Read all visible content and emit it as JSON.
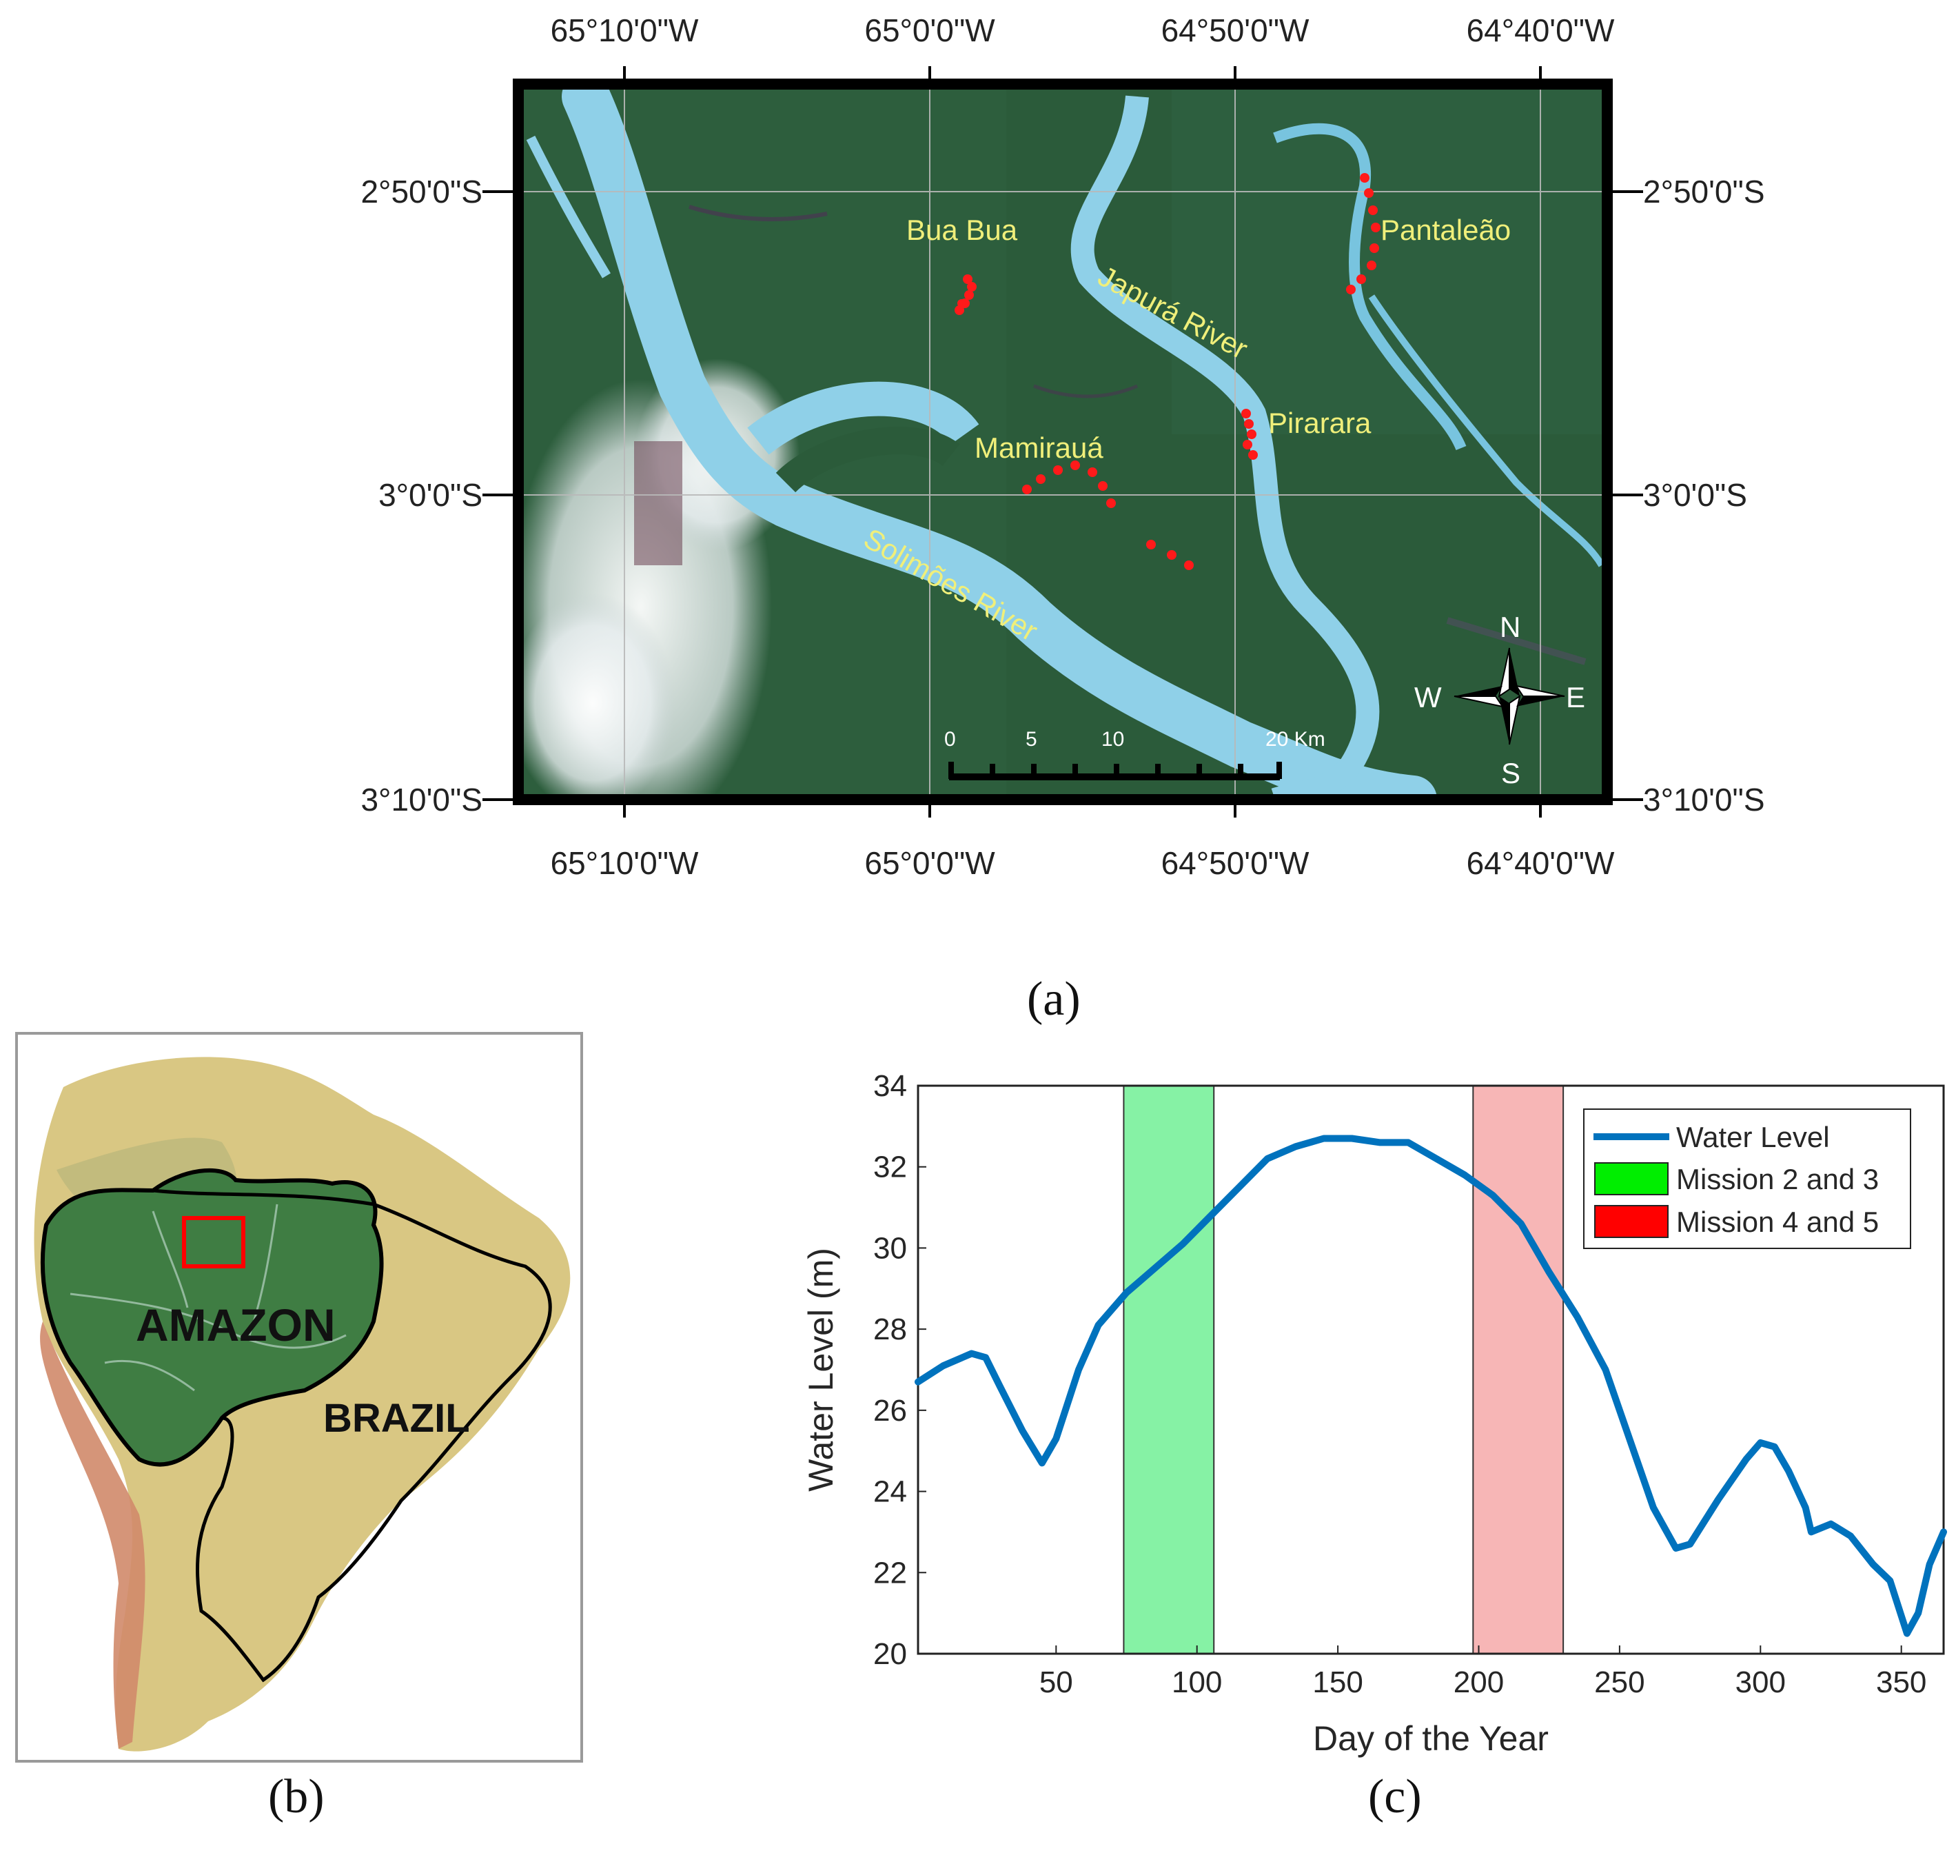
{
  "panel_a": {
    "caption": "(a)",
    "lon_labels": [
      "65°10'0\"W",
      "65°0'0\"W",
      "64°50'0\"W",
      "64°40'0\"W"
    ],
    "lat_labels": [
      "2°50'0\"S",
      "3°0'0\"S",
      "3°10'0\"S"
    ],
    "sites": [
      "Bua Bua",
      "Pantaleão",
      "Pirarara",
      "Mamirauá"
    ],
    "rivers": [
      "Japurá River",
      "Solimões River"
    ],
    "scale_ticks": [
      "0",
      "5",
      "10",
      "20 Km"
    ],
    "compass": {
      "n": "N",
      "s": "S",
      "e": "E",
      "w": "W"
    },
    "colors": {
      "river": "#8fd0e8",
      "forest": "#2a5a38",
      "sample_point": "#ff1a1a",
      "label": "#f0ef7a"
    }
  },
  "panel_b": {
    "caption": "(b)",
    "labels": [
      "AMAZON",
      "BRAZIL"
    ],
    "colors": {
      "amazon": "#3f7d43",
      "land": "#d9c783",
      "andes": "#d0896a",
      "highlight_box": "#ff0000"
    }
  },
  "panel_c": {
    "caption": "(c)",
    "chart_data": {
      "type": "line",
      "xlabel": "Day of the Year",
      "ylabel": "Water Level (m)",
      "xlim": [
        1,
        365
      ],
      "ylim": [
        20,
        34
      ],
      "xticks": [
        50,
        100,
        150,
        200,
        250,
        300,
        350
      ],
      "yticks": [
        20,
        22,
        24,
        26,
        28,
        30,
        32,
        34
      ],
      "grid": false,
      "legend_position": "top-right",
      "series": [
        {
          "name": "Water Level",
          "color": "#0072bd",
          "x": [
            1,
            10,
            20,
            25,
            30,
            38,
            45,
            50,
            58,
            65,
            75,
            85,
            95,
            105,
            115,
            125,
            135,
            145,
            155,
            165,
            175,
            185,
            195,
            205,
            215,
            225,
            235,
            245,
            255,
            262,
            270,
            275,
            285,
            295,
            300,
            305,
            310,
            316,
            318,
            325,
            332,
            340,
            346,
            352,
            356,
            360,
            365
          ],
          "y": [
            26.7,
            27.1,
            27.4,
            27.3,
            26.6,
            25.5,
            24.7,
            25.3,
            27.0,
            28.1,
            28.9,
            29.5,
            30.1,
            30.8,
            31.5,
            32.2,
            32.5,
            32.7,
            32.7,
            32.6,
            32.6,
            32.2,
            31.8,
            31.3,
            30.6,
            29.4,
            28.3,
            27.0,
            25.0,
            23.6,
            22.6,
            22.7,
            23.8,
            24.8,
            25.2,
            25.1,
            24.5,
            23.6,
            23.0,
            23.2,
            22.9,
            22.2,
            21.8,
            20.5,
            21.0,
            22.2,
            23.0
          ]
        },
        {
          "name": "Mission 2 and 3",
          "type": "band",
          "x_range": [
            74,
            106
          ],
          "color": "#86f2a5"
        },
        {
          "name": "Mission 4 and 5",
          "type": "band",
          "x_range": [
            198,
            230
          ],
          "color": "#f7b6b6"
        }
      ]
    }
  }
}
